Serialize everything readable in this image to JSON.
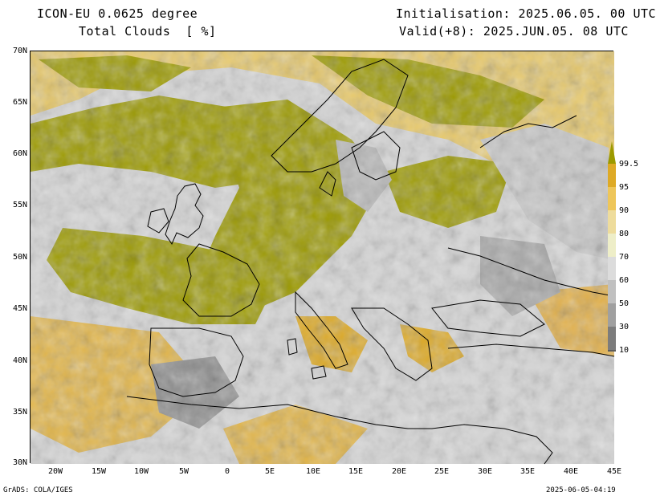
{
  "header": {
    "model": "ICON-EU 0.0625 degree",
    "field": "Total Clouds  [ %]",
    "init": "Initialisation: 2025.06.05. 00 UTC",
    "valid": "Valid(+8): 2025.JUN.05. 08 UTC"
  },
  "map": {
    "lat_labels": [
      "70N",
      "65N",
      "60N",
      "55N",
      "50N",
      "45N",
      "40N",
      "35N",
      "30N"
    ],
    "lon_labels": [
      "20W",
      "15W",
      "10W",
      "5W",
      "0",
      "5E",
      "10E",
      "15E",
      "20E",
      "25E",
      "30E",
      "35E",
      "40E",
      "45E"
    ],
    "lat_range": [
      30,
      70
    ],
    "lon_range": [
      -23,
      45
    ],
    "coastline_color": "#000000"
  },
  "colorbar": {
    "labels": [
      "99.5",
      "95",
      "90",
      "80",
      "70",
      "60",
      "50",
      "30",
      "10"
    ],
    "colors": [
      "#9c9a00",
      "#deaa26",
      "#eec65a",
      "#eedc9c",
      "#eeeec8",
      "#dcdcdc",
      "#c0c0c0",
      "#a0a0a0",
      "#7c7c7c",
      "#5c5c5c"
    ]
  },
  "footer": {
    "left": "GrADS: COLA/IGES",
    "right": "2025-06-05-04:19"
  }
}
